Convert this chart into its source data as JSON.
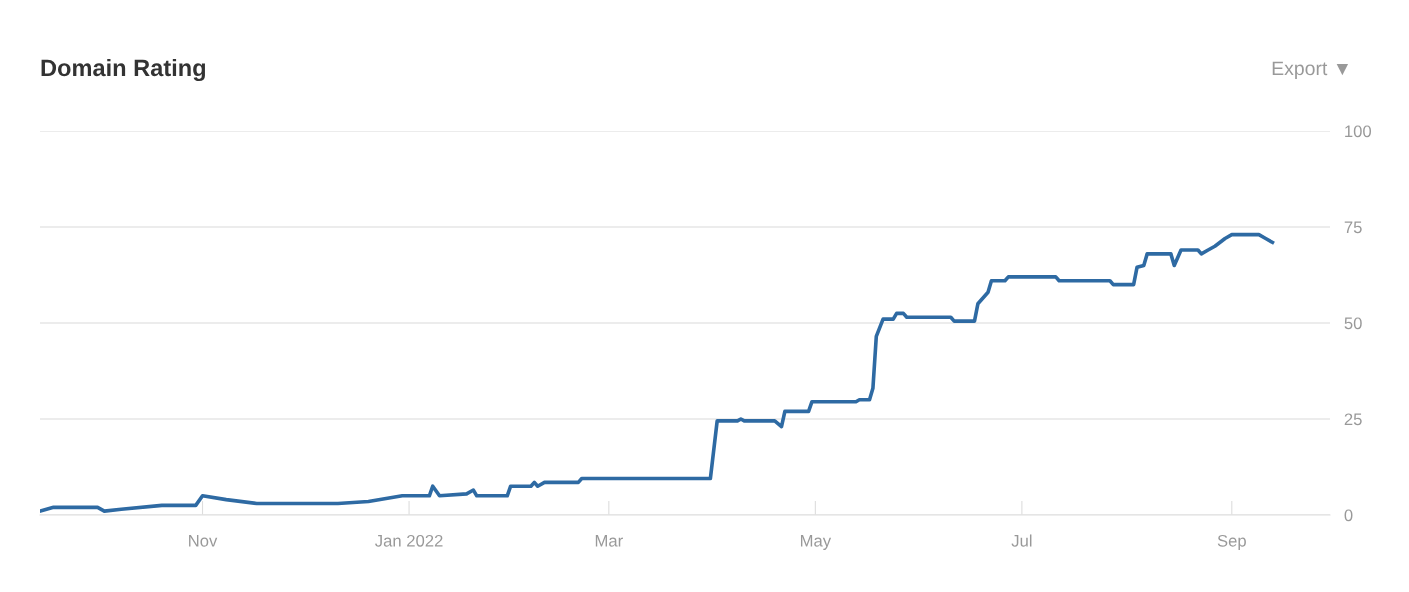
{
  "chart_data": {
    "type": "line",
    "title": "Domain Rating",
    "annotations": [
      "Export ▼"
    ],
    "x": [
      "2021-09-14",
      "2021-09-18",
      "2021-10-01",
      "2021-10-03",
      "2021-10-08",
      "2021-10-20",
      "2021-10-30",
      "2021-11-01",
      "2021-11-08",
      "2021-11-17",
      "2021-12-11",
      "2021-12-20",
      "2021-12-30",
      "2022-01-07",
      "2022-01-08",
      "2022-01-10",
      "2022-01-18",
      "2022-01-20",
      "2022-01-21",
      "2022-01-30",
      "2022-01-31",
      "2022-02-06",
      "2022-02-07",
      "2022-02-08",
      "2022-02-10",
      "2022-02-20",
      "2022-02-21",
      "2022-03-31",
      "2022-04-02",
      "2022-04-08",
      "2022-04-09",
      "2022-04-10",
      "2022-04-19",
      "2022-04-21",
      "2022-04-22",
      "2022-04-29",
      "2022-04-30",
      "2022-05-13",
      "2022-05-14",
      "2022-05-17",
      "2022-05-18",
      "2022-05-19",
      "2022-05-21",
      "2022-05-24",
      "2022-05-25",
      "2022-05-27",
      "2022-05-28",
      "2022-06-10",
      "2022-06-11",
      "2022-06-17",
      "2022-06-18",
      "2022-06-21",
      "2022-06-22",
      "2022-06-26",
      "2022-06-27",
      "2022-07-11",
      "2022-07-12",
      "2022-07-27",
      "2022-07-28",
      "2022-08-03",
      "2022-08-04",
      "2022-08-06",
      "2022-08-07",
      "2022-08-14",
      "2022-08-15",
      "2022-08-17",
      "2022-08-22",
      "2022-08-23",
      "2022-08-25",
      "2022-08-27",
      "2022-08-30",
      "2022-09-01",
      "2022-09-09",
      "2022-09-11",
      "2022-09-13"
    ],
    "series": [
      {
        "color": "#2e6aa3",
        "values": [
          1,
          2,
          2,
          1,
          1.5,
          2.5,
          2.5,
          5,
          4,
          3,
          3,
          3.5,
          5,
          5,
          7.5,
          5,
          5.5,
          6.5,
          5,
          5,
          7.5,
          7.5,
          8.5,
          7.5,
          8.5,
          8.5,
          9.5,
          9.5,
          24.5,
          24.5,
          25,
          24.5,
          24.5,
          23,
          27,
          27,
          29.5,
          29.5,
          30,
          30,
          33,
          46.5,
          51,
          51,
          52.5,
          52.5,
          51.5,
          51.5,
          50.5,
          50.5,
          55,
          58,
          61,
          61,
          62,
          62,
          61,
          61,
          60,
          60,
          64.5,
          65,
          68,
          68,
          65,
          69,
          69,
          68,
          69,
          70,
          72,
          73,
          73,
          72,
          71
        ]
      }
    ],
    "xlim": [
      "2021-09-14",
      "2022-09-30"
    ],
    "xticks": [
      {
        "value": "2021-11-01",
        "label": "Nov"
      },
      {
        "value": "2022-01-01",
        "label": "Jan 2022"
      },
      {
        "value": "2022-03-01",
        "label": "Mar"
      },
      {
        "value": "2022-05-01",
        "label": "May"
      },
      {
        "value": "2022-07-01",
        "label": "Jul"
      },
      {
        "value": "2022-09-01",
        "label": "Sep"
      }
    ],
    "ylim": [
      0,
      100
    ],
    "yticks": [
      0,
      25,
      50,
      75,
      100
    ],
    "grid": "y"
  }
}
